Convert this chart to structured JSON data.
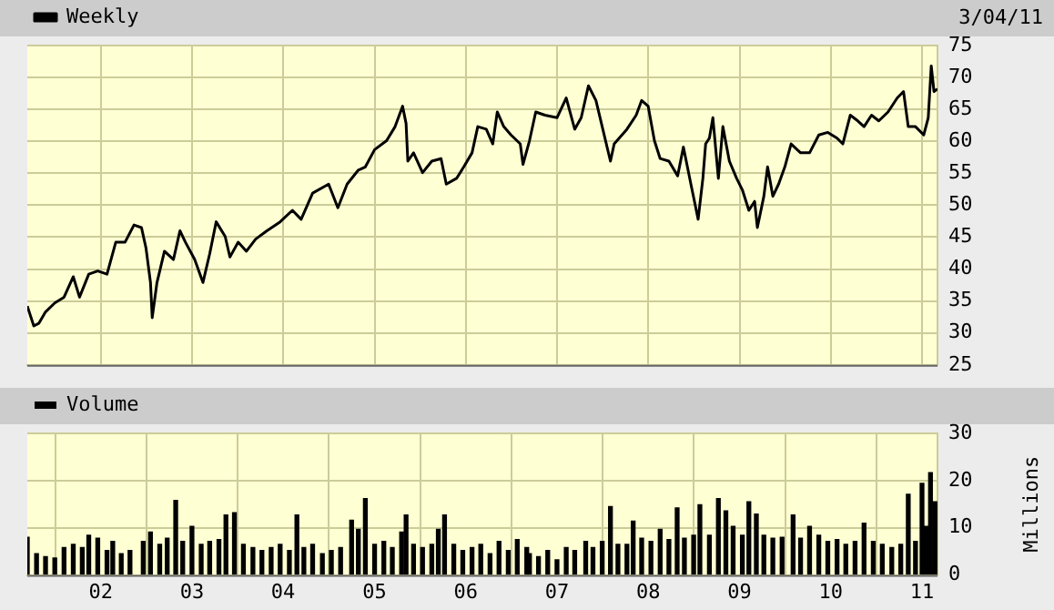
{
  "chart_data": [
    {
      "type": "line",
      "annotations": [
        "3/04/11"
      ],
      "legend": "top left",
      "grid": true,
      "tick_labels": "y",
      "x": [
        "2001-03-13",
        "2001-04-08",
        "2001-04-28",
        "2001-05-25",
        "2001-07-01",
        "2001-08-07",
        "2001-09-13",
        "2001-10-08",
        "2001-11-14",
        "2001-12-20",
        "2002-01-26",
        "2002-03-02",
        "2002-04-08",
        "2002-05-14",
        "2002-06-13",
        "2002-07-01",
        "2002-07-19",
        "2002-07-26",
        "2002-08-14",
        "2002-09-13",
        "2002-10-19",
        "2002-11-14",
        "2002-12-06",
        "2003-01-12",
        "2003-02-14",
        "2003-03-13",
        "2003-04-08",
        "2003-05-14",
        "2003-06-02",
        "2003-07-05",
        "2003-08-07",
        "2003-09-13",
        "2003-10-28",
        "2003-12-20",
        "2004-02-07",
        "2004-03-13",
        "2004-04-28",
        "2004-07-01",
        "2004-08-07",
        "2004-09-13",
        "2004-10-28",
        "2004-11-25",
        "2005-01-01",
        "2005-02-18",
        "2005-03-24",
        "2005-04-23",
        "2005-05-07",
        "2005-05-14",
        "2005-06-06",
        "2005-07-12",
        "2005-08-18",
        "2005-09-24",
        "2005-10-15",
        "2005-11-25",
        "2005-12-24",
        "2006-01-26",
        "2006-02-18",
        "2006-03-24",
        "2006-04-19",
        "2006-05-07",
        "2006-06-02",
        "2006-07-01",
        "2006-08-07",
        "2006-08-18",
        "2006-09-13",
        "2006-10-08",
        "2006-11-14",
        "2007-01-01",
        "2007-02-07",
        "2007-03-13",
        "2007-04-08",
        "2007-05-07",
        "2007-06-06",
        "2007-07-01",
        "2007-08-03",
        "2007-08-18",
        "2007-10-08",
        "2007-11-14",
        "2007-12-06",
        "2008-01-01",
        "2008-01-26",
        "2008-02-18",
        "2008-03-24",
        "2008-04-28",
        "2008-05-21",
        "2008-06-20",
        "2008-07-19",
        "2008-08-07",
        "2008-08-18",
        "2008-09-02",
        "2008-09-16",
        "2008-10-08",
        "2008-10-26",
        "2008-11-21",
        "2008-12-20",
        "2009-01-12",
        "2009-02-07",
        "2009-03-02",
        "2009-03-13",
        "2009-04-08",
        "2009-04-23",
        "2009-05-14",
        "2009-06-06",
        "2009-07-01",
        "2009-07-26",
        "2009-09-02",
        "2009-10-08",
        "2009-11-14",
        "2009-12-20",
        "2010-01-26",
        "2010-02-18",
        "2010-03-20",
        "2010-04-19",
        "2010-05-14",
        "2010-06-13",
        "2010-07-12",
        "2010-08-18",
        "2010-09-24",
        "2010-10-19",
        "2010-11-07",
        "2010-12-06",
        "2011-01-08",
        "2011-01-26",
        "2011-02-07",
        "2011-02-18",
        "2011-03-04"
      ],
      "series": [
        {
          "name": "Weekly",
          "color": "#000000",
          "values": [
            34.2,
            31.1,
            31.5,
            33.3,
            34.7,
            35.6,
            38.8,
            35.6,
            39.2,
            39.7,
            39.2,
            44.2,
            44.2,
            46.9,
            46.5,
            43.3,
            37.9,
            32.4,
            37.9,
            42.8,
            41.5,
            46.0,
            44.2,
            41.5,
            37.9,
            42.4,
            47.4,
            45.1,
            41.9,
            44.2,
            42.8,
            44.7,
            46.0,
            47.4,
            49.2,
            47.8,
            51.9,
            53.3,
            49.6,
            53.3,
            55.5,
            56.0,
            58.7,
            60.1,
            62.3,
            65.5,
            62.8,
            56.9,
            58.2,
            55.1,
            56.9,
            57.3,
            53.3,
            54.2,
            56.0,
            58.2,
            62.3,
            61.9,
            59.6,
            64.6,
            62.3,
            61.0,
            59.6,
            56.4,
            60.1,
            64.6,
            64.1,
            63.7,
            66.8,
            61.9,
            63.7,
            68.7,
            66.4,
            62.3,
            56.9,
            59.6,
            61.9,
            64.1,
            66.4,
            65.5,
            60.1,
            57.3,
            56.9,
            54.6,
            59.1,
            53.3,
            47.8,
            54.2,
            59.6,
            60.5,
            63.7,
            54.2,
            62.3,
            56.9,
            54.2,
            52.4,
            49.2,
            50.6,
            46.5,
            51.4,
            56.0,
            51.4,
            53.3,
            56.0,
            59.6,
            58.2,
            58.2,
            61.0,
            61.4,
            60.5,
            59.6,
            64.1,
            63.2,
            62.3,
            64.1,
            63.2,
            64.6,
            66.8,
            67.8,
            62.3,
            62.3,
            61.0,
            63.7,
            71.8,
            67.8,
            68.2
          ]
        }
      ],
      "xlim": [
        "2001-03-13",
        "2011-03-04"
      ],
      "xticks": [
        {
          "value": "2002",
          "label": null
        },
        {
          "value": "2003",
          "label": null
        },
        {
          "value": "2004",
          "label": null
        },
        {
          "value": "2005",
          "label": null
        },
        {
          "value": "2006",
          "label": null
        },
        {
          "value": "2007",
          "label": null
        },
        {
          "value": "2008",
          "label": null
        },
        {
          "value": "2009",
          "label": null
        },
        {
          "value": "2010",
          "label": null
        },
        {
          "value": "2011",
          "label": null
        }
      ],
      "ylim": [
        25,
        75
      ],
      "yticks": [
        25,
        30,
        35,
        40,
        45,
        50,
        55,
        60,
        65,
        70,
        75
      ]
    },
    {
      "type": "bar",
      "ylabel": "Millions",
      "legend": "top left",
      "grid": true,
      "x": [
        "2001-03-13",
        "2001-04-19",
        "2001-05-25",
        "2001-07-01",
        "2001-08-07",
        "2001-09-13",
        "2001-10-19",
        "2001-11-14",
        "2001-12-20",
        "2002-01-26",
        "2002-02-18",
        "2002-03-24",
        "2002-04-28",
        "2002-06-20",
        "2002-07-19",
        "2002-08-25",
        "2002-09-24",
        "2002-10-28",
        "2002-11-25",
        "2003-01-01",
        "2003-02-07",
        "2003-03-13",
        "2003-04-19",
        "2003-05-17",
        "2003-06-20",
        "2003-07-26",
        "2003-09-02",
        "2003-10-08",
        "2003-11-14",
        "2003-12-20",
        "2004-01-26",
        "2004-02-25",
        "2004-03-24",
        "2004-04-28",
        "2004-06-06",
        "2004-07-12",
        "2004-08-18",
        "2004-10-01",
        "2004-10-28",
        "2004-11-25",
        "2005-01-01",
        "2005-02-07",
        "2005-03-13",
        "2005-04-19",
        "2005-05-07",
        "2005-06-06",
        "2005-07-12",
        "2005-08-18",
        "2005-09-13",
        "2005-10-08",
        "2005-11-14",
        "2005-12-20",
        "2006-01-26",
        "2006-03-02",
        "2006-04-08",
        "2006-05-14",
        "2006-06-20",
        "2006-07-26",
        "2006-09-02",
        "2006-09-13",
        "2006-10-19",
        "2006-11-25",
        "2007-01-01",
        "2007-02-07",
        "2007-03-13",
        "2007-04-26",
        "2007-05-25",
        "2007-07-01",
        "2007-08-03",
        "2007-09-02",
        "2007-10-08",
        "2007-11-02",
        "2007-12-06",
        "2008-01-12",
        "2008-02-18",
        "2008-03-24",
        "2008-04-26",
        "2008-05-25",
        "2008-07-01",
        "2008-07-26",
        "2008-09-02",
        "2008-10-08",
        "2008-11-07",
        "2008-12-06",
        "2009-01-12",
        "2009-02-07",
        "2009-03-09",
        "2009-04-08",
        "2009-05-14",
        "2009-06-20",
        "2009-08-03",
        "2009-09-02",
        "2009-10-08",
        "2009-11-14",
        "2009-12-20",
        "2010-01-26",
        "2010-03-02",
        "2010-04-08",
        "2010-05-14",
        "2010-06-20",
        "2010-07-26",
        "2010-09-02",
        "2010-10-08",
        "2010-11-07",
        "2010-12-06",
        "2011-01-01",
        "2011-01-17",
        "2011-02-04",
        "2011-02-22"
      ],
      "series": [
        {
          "name": "Volume",
          "color": "#000000",
          "values": [
            8.0,
            4.5,
            3.9,
            3.6,
            5.8,
            6.5,
            5.8,
            8.4,
            7.8,
            5.2,
            7.1,
            4.5,
            5.2,
            7.1,
            9.1,
            6.5,
            7.8,
            15.8,
            7.1,
            10.3,
            6.5,
            7.1,
            7.5,
            12.7,
            13.2,
            6.5,
            5.8,
            5.2,
            5.8,
            6.5,
            5.2,
            12.7,
            5.8,
            6.5,
            4.5,
            5.2,
            5.8,
            11.6,
            9.7,
            16.2,
            6.5,
            7.1,
            5.8,
            9.1,
            12.7,
            6.5,
            5.8,
            6.5,
            9.7,
            12.7,
            6.5,
            5.2,
            5.8,
            6.5,
            4.5,
            7.1,
            5.2,
            7.5,
            5.8,
            4.5,
            3.9,
            5.2,
            3.2,
            5.8,
            5.2,
            7.1,
            5.8,
            7.1,
            14.5,
            6.5,
            6.5,
            11.4,
            7.8,
            7.1,
            9.7,
            7.5,
            14.2,
            7.8,
            8.4,
            14.9,
            8.4,
            16.2,
            13.6,
            10.3,
            8.4,
            15.5,
            12.9,
            8.4,
            7.8,
            8.0,
            12.7,
            7.8,
            10.3,
            8.4,
            7.1,
            7.5,
            6.5,
            7.1,
            11.0,
            7.1,
            6.5,
            5.8,
            6.5,
            17.1,
            7.1,
            19.4,
            10.3,
            21.7,
            15.5
          ]
        }
      ],
      "xlim": [
        "2001-03-13",
        "2011-03-04"
      ],
      "xticks": [
        {
          "value": "2002",
          "label": "02"
        },
        {
          "value": "2003",
          "label": "03"
        },
        {
          "value": "2004",
          "label": "04"
        },
        {
          "value": "2005",
          "label": "05"
        },
        {
          "value": "2006",
          "label": "06"
        },
        {
          "value": "2007",
          "label": "07"
        },
        {
          "value": "2008",
          "label": "08"
        },
        {
          "value": "2009",
          "label": "09"
        },
        {
          "value": "2010",
          "label": "10"
        },
        {
          "value": "2011",
          "label": "11"
        }
      ],
      "ylim": [
        0,
        30
      ],
      "yticks": [
        0,
        10,
        20,
        30
      ]
    }
  ]
}
